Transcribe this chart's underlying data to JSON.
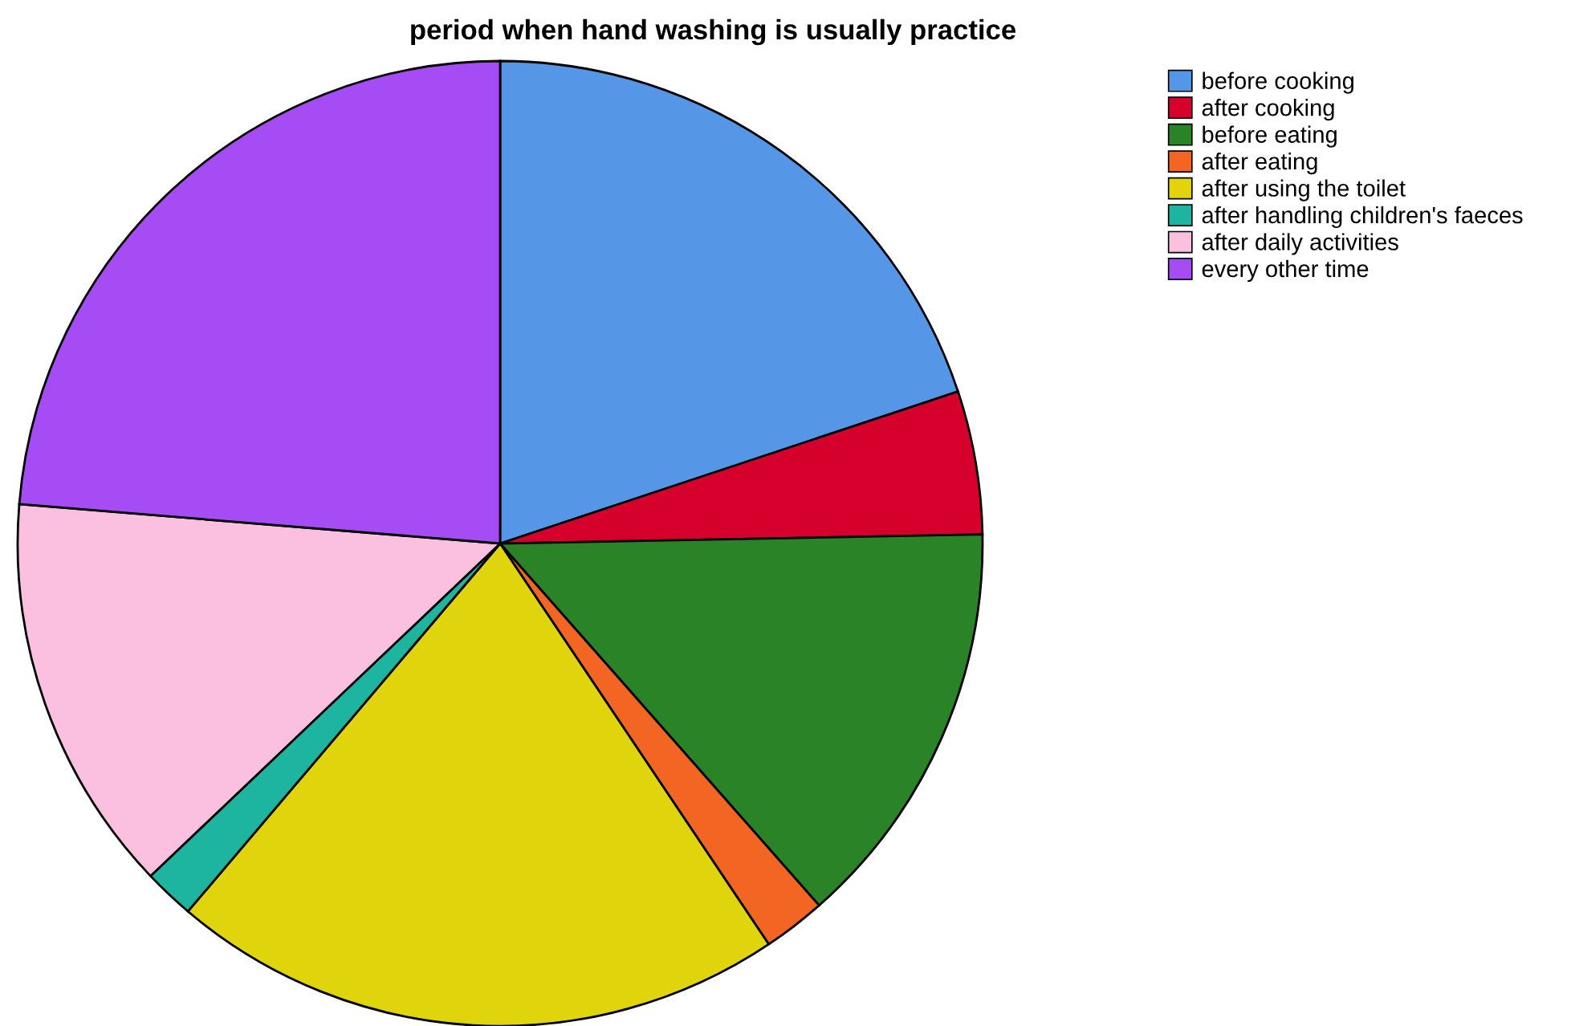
{
  "chart_data": {
    "type": "pie",
    "title": "period when hand washing is usually practice",
    "categories": [
      "before cooking",
      "after cooking",
      "before eating",
      "after eating",
      "after using the toilet",
      "after handling children's faeces",
      "after daily activities",
      "every other time"
    ],
    "values": [
      19.9,
      4.8,
      13.8,
      2.1,
      20.6,
      1.7,
      13.4,
      23.7
    ],
    "colors": [
      "#5596e6",
      "#d5002c",
      "#2a8427",
      "#f26522",
      "#e0d40c",
      "#1db5a0",
      "#fbc0e0",
      "#a64cf4"
    ],
    "legend": "top right"
  }
}
